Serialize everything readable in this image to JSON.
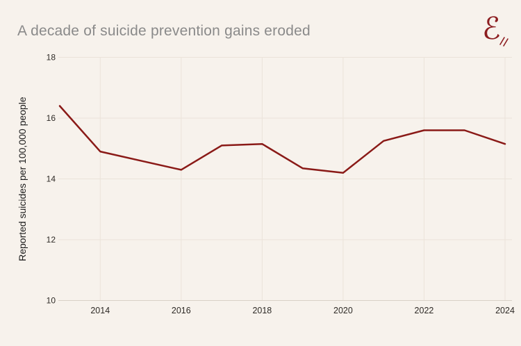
{
  "header": {
    "title": "A decade of suicide prevention gains eroded",
    "logo_glyph": "ℰ"
  },
  "colors": {
    "background": "#f7f2ec",
    "line": "#8a1a17",
    "grid": "#ebe3da",
    "axis": "#d9d0c6",
    "title_text": "#8a8a8a",
    "tick_text": "#2e2a26",
    "logo": "#8c1d20"
  },
  "chart_data": {
    "type": "line",
    "title": "A decade of suicide prevention gains eroded",
    "xlabel": "",
    "ylabel": "Reported suicides per 100,000 people",
    "x": [
      2013,
      2014,
      2015,
      2016,
      2017,
      2018,
      2019,
      2020,
      2021,
      2022,
      2023,
      2024
    ],
    "series": [
      {
        "name": "Reported suicides per 100,000 people",
        "values": [
          16.4,
          14.9,
          14.6,
          14.3,
          15.1,
          15.15,
          14.35,
          14.2,
          15.25,
          15.6,
          15.6,
          15.15
        ]
      }
    ],
    "xlim": [
      2013,
      2024
    ],
    "ylim": [
      10,
      18
    ],
    "x_ticks": [
      2014,
      2016,
      2018,
      2020,
      2022,
      2024
    ],
    "y_ticks": [
      10,
      12,
      14,
      16,
      18
    ],
    "grid": true,
    "legend": "none"
  }
}
